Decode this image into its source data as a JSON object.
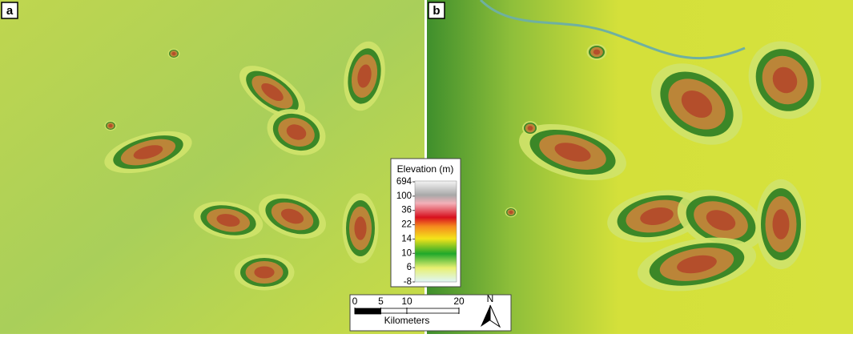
{
  "panels": [
    {
      "label": "a"
    },
    {
      "label": "b"
    }
  ],
  "legend": {
    "title": "Elevation (m)",
    "ticks": [
      694,
      100,
      36,
      22,
      14,
      10,
      6,
      -8
    ]
  },
  "scale_bar": {
    "ticks": [
      0,
      5,
      10,
      20
    ],
    "unit": "Kilometers"
  },
  "north_arrow": {
    "label": "N"
  }
}
